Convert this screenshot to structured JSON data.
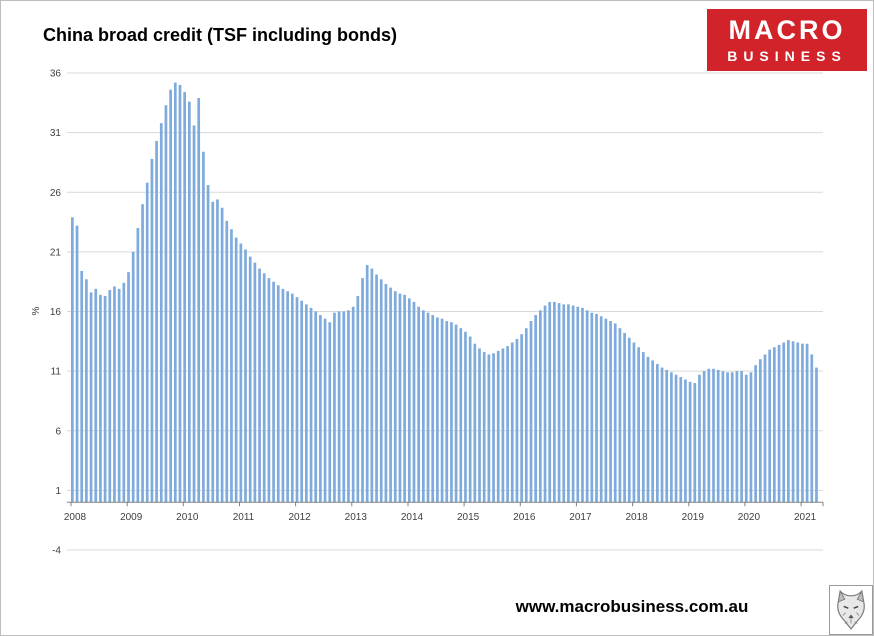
{
  "logo": {
    "line1": "MACRO",
    "line2": "BUSINESS",
    "bg_color": "#d2232a"
  },
  "footer": {
    "url": "www.macrobusiness.com.au"
  },
  "chart_data": {
    "type": "bar",
    "title": "China broad credit (TSF including bonds)",
    "xlabel": "",
    "ylabel": "%",
    "ylim": [
      -4,
      36
    ],
    "yticks": [
      36,
      31,
      26,
      21,
      16,
      11,
      6,
      1,
      -4
    ],
    "grid": true,
    "legend": "none",
    "bar_color": "#7FABDC",
    "gridline_color": "#d9d9d9",
    "axis_color": "#808080",
    "frequency": "monthly",
    "years": [
      {
        "label": "2008",
        "values": [
          23.9,
          23.2,
          19.4,
          18.7,
          17.6,
          17.9,
          17.4,
          17.3,
          17.8,
          18.1,
          17.9,
          18.4
        ]
      },
      {
        "label": "2009",
        "values": [
          19.3,
          21.0,
          23.0,
          25.0,
          26.8,
          28.8,
          30.3,
          31.8,
          33.3,
          34.6,
          35.2,
          35.0
        ]
      },
      {
        "label": "2010",
        "values": [
          34.4,
          33.6,
          31.6,
          33.9,
          29.4,
          26.6,
          25.2,
          25.4,
          24.7,
          23.6,
          22.9,
          22.2
        ]
      },
      {
        "label": "2011",
        "values": [
          21.7,
          21.2,
          20.6,
          20.1,
          19.6,
          19.2,
          18.8,
          18.5,
          18.2,
          17.9,
          17.7,
          17.5
        ]
      },
      {
        "label": "2012",
        "values": [
          17.2,
          16.9,
          16.6,
          16.3,
          16.0,
          15.7,
          15.4,
          15.1,
          15.9,
          16.0,
          16.0,
          16.1
        ]
      },
      {
        "label": "2013",
        "values": [
          16.4,
          17.3,
          18.8,
          19.9,
          19.6,
          19.1,
          18.7,
          18.3,
          18.0,
          17.7,
          17.5,
          17.4
        ]
      },
      {
        "label": "2014",
        "values": [
          17.1,
          16.8,
          16.4,
          16.1,
          15.9,
          15.7,
          15.5,
          15.4,
          15.2,
          15.1,
          14.9,
          14.6
        ]
      },
      {
        "label": "2015",
        "values": [
          14.3,
          13.9,
          13.3,
          12.9,
          12.6,
          12.4,
          12.5,
          12.7,
          12.9,
          13.1,
          13.4,
          13.7
        ]
      },
      {
        "label": "2016",
        "values": [
          14.1,
          14.6,
          15.2,
          15.7,
          16.1,
          16.5,
          16.8,
          16.8,
          16.7,
          16.6,
          16.6,
          16.5
        ]
      },
      {
        "label": "2017",
        "values": [
          16.4,
          16.3,
          16.1,
          15.9,
          15.8,
          15.6,
          15.4,
          15.2,
          15.0,
          14.6,
          14.2,
          13.8
        ]
      },
      {
        "label": "2018",
        "values": [
          13.4,
          13.0,
          12.6,
          12.2,
          11.9,
          11.6,
          11.3,
          11.1,
          10.9,
          10.7,
          10.5,
          10.3
        ]
      },
      {
        "label": "2019",
        "values": [
          10.1,
          10.0,
          10.7,
          11.0,
          11.2,
          11.2,
          11.1,
          11.0,
          10.9,
          10.9,
          11.0,
          11.0
        ]
      },
      {
        "label": "2020",
        "values": [
          10.7,
          10.9,
          11.5,
          12.0,
          12.4,
          12.8,
          13.0,
          13.2,
          13.4,
          13.6,
          13.5,
          13.4
        ]
      },
      {
        "label": "2021",
        "values": [
          13.3,
          13.3,
          12.4,
          11.3
        ]
      }
    ]
  }
}
